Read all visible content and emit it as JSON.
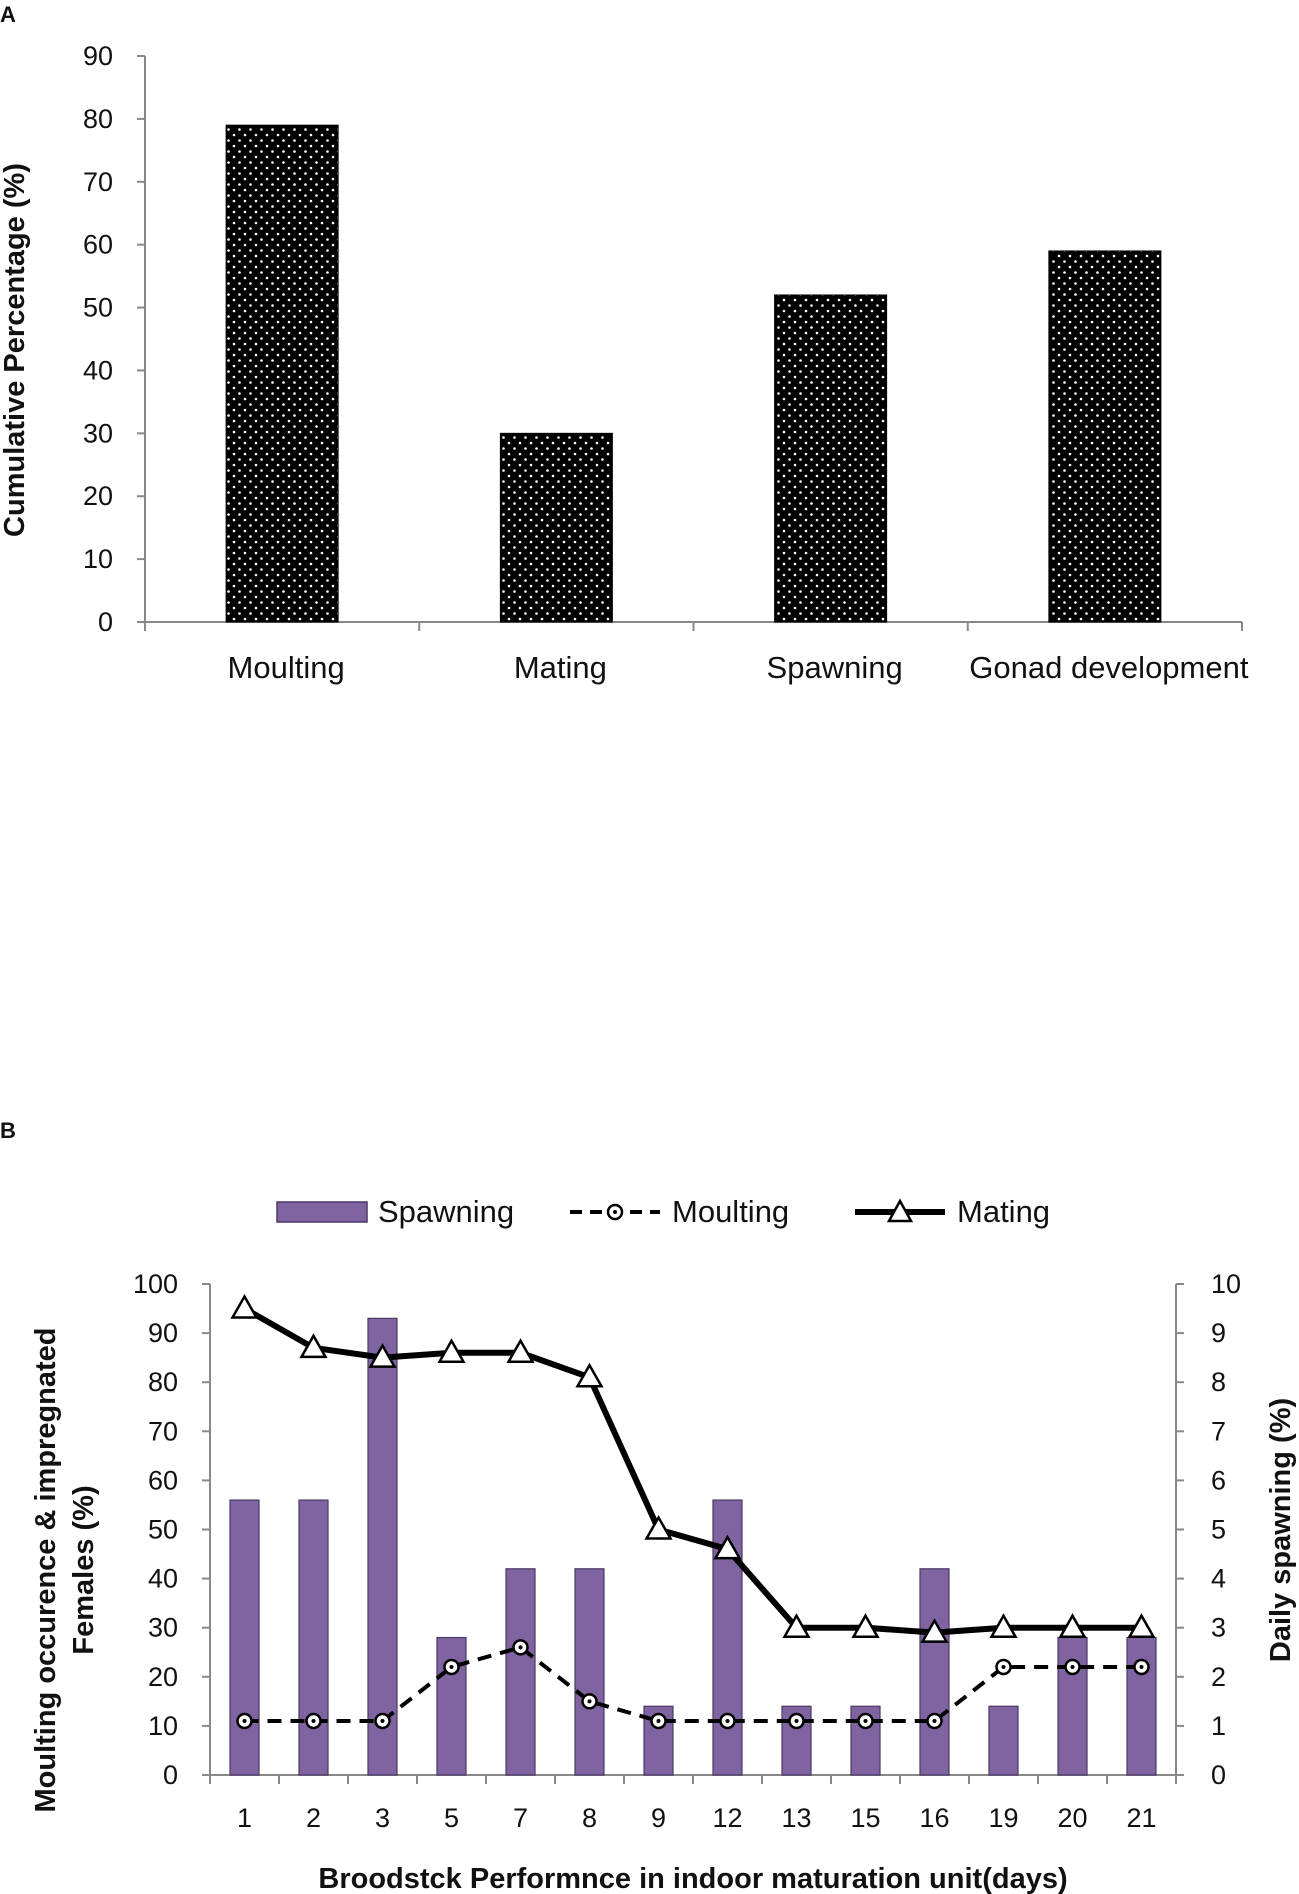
{
  "chart_data": [
    {
      "panel": "A",
      "type": "bar",
      "title": "",
      "ylabel": "Cumulative Percentage (%)",
      "xlabel": "",
      "ylim": [
        0,
        90
      ],
      "yticks": [
        0,
        10,
        20,
        30,
        40,
        50,
        60,
        70,
        80,
        90
      ],
      "categories": [
        "Moulting",
        "Mating",
        "Spawning",
        "Gonad development"
      ],
      "values": [
        79,
        30,
        52,
        59
      ],
      "bar_color": "#000000",
      "dot_color": "#ffffff"
    },
    {
      "panel": "B",
      "type": "bar",
      "xlabel": "Broodstck Performnce in indoor maturation unit(days)",
      "ylabel_left_line1": "Moulting occurence & impregnated",
      "ylabel_left_line2": "Females (%)",
      "ylabel_right": "Daily spawning (%)",
      "ylim_left": [
        0,
        100
      ],
      "ylim_right": [
        0,
        10
      ],
      "yticks_left": [
        0,
        10,
        20,
        30,
        40,
        50,
        60,
        70,
        80,
        90,
        100
      ],
      "yticks_right": [
        0,
        1,
        2,
        3,
        4,
        5,
        6,
        7,
        8,
        9,
        10
      ],
      "categories": [
        "1",
        "2",
        "3",
        "5",
        "7",
        "8",
        "9",
        "12",
        "13",
        "15",
        "16",
        "19",
        "20",
        "21"
      ],
      "legend": [
        "Spawning",
        "Moulting",
        "Mating"
      ],
      "series": [
        {
          "name": "Spawning",
          "type": "bar",
          "axis": "right",
          "color": "#8064a2",
          "values": [
            5.6,
            5.6,
            9.3,
            2.8,
            4.2,
            4.2,
            1.4,
            5.6,
            1.4,
            1.4,
            4.2,
            1.4,
            2.8,
            2.8
          ]
        },
        {
          "name": "Moulting",
          "type": "line",
          "style": "dashed",
          "marker": "circle",
          "axis": "left",
          "color": "#000000",
          "values": [
            11,
            11,
            11,
            22,
            26,
            15,
            11,
            11,
            11,
            11,
            11,
            22,
            22,
            22
          ]
        },
        {
          "name": "Mating",
          "type": "line",
          "style": "solid",
          "marker": "triangle",
          "axis": "left",
          "color": "#000000",
          "values": [
            95,
            87,
            85,
            86,
            86,
            81,
            50,
            46,
            30,
            30,
            29,
            30,
            30,
            30
          ]
        }
      ]
    }
  ]
}
